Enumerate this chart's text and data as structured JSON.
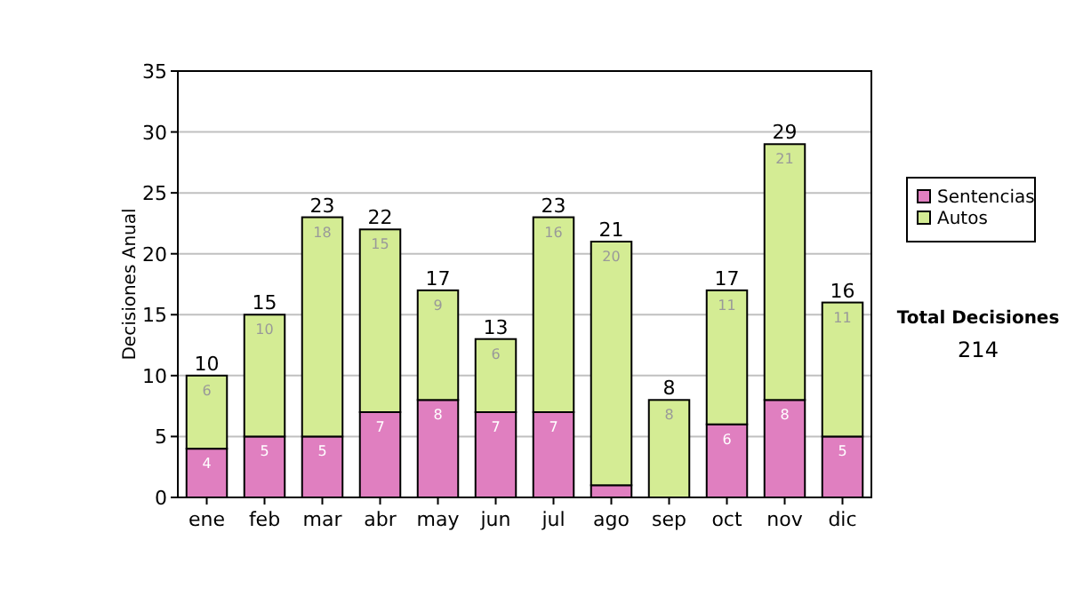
{
  "chart_data": {
    "type": "bar",
    "stacked": true,
    "ylabel": "Decisiones Anual",
    "categories": [
      "ene",
      "feb",
      "mar",
      "abr",
      "may",
      "jun",
      "jul",
      "ago",
      "sep",
      "oct",
      "nov",
      "dic"
    ],
    "series": [
      {
        "name": "Sentencias",
        "color": "#e07fc0",
        "values": [
          4,
          5,
          5,
          7,
          8,
          7,
          7,
          1,
          0,
          6,
          8,
          5
        ],
        "value_labels": [
          "4",
          "5",
          "5",
          "7",
          "8",
          "7",
          "7",
          null,
          null,
          "6",
          "8",
          "5"
        ]
      },
      {
        "name": "Autos",
        "color": "#d4ec94",
        "values": [
          6,
          10,
          18,
          15,
          9,
          6,
          16,
          20,
          8,
          11,
          21,
          11
        ],
        "value_labels": [
          "6",
          "10",
          "18",
          "15",
          "9",
          "6",
          "16",
          "20",
          "8",
          "11",
          "21",
          "11"
        ]
      }
    ],
    "totals": [
      "10",
      "15",
      "23",
      "22",
      "17",
      "13",
      "23",
      "21",
      "8",
      "17",
      "29",
      "16"
    ],
    "ylim": [
      0,
      35
    ],
    "yticks": [
      0,
      5,
      10,
      15,
      20,
      25,
      30,
      35
    ],
    "grid": "y",
    "legend": "right",
    "annotations": [
      "Total Decisiones",
      "214"
    ]
  }
}
